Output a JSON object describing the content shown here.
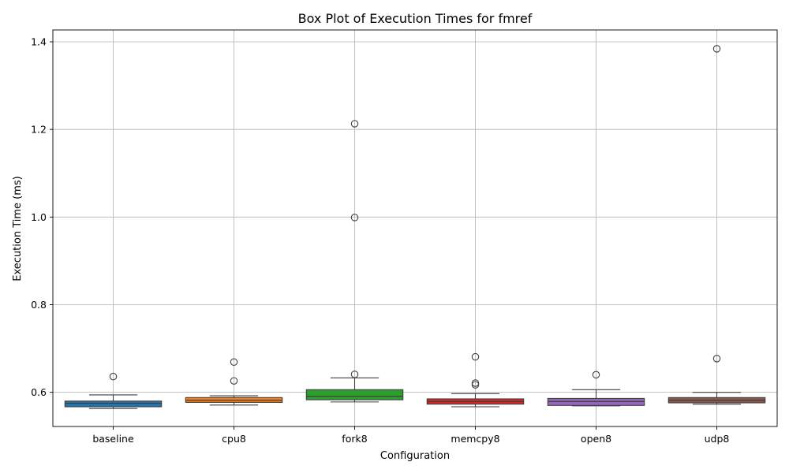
{
  "chart_data": {
    "type": "box",
    "title": "Box Plot of Execution Times for fmref",
    "xlabel": "Configuration",
    "ylabel": "Execution Time (ms)",
    "ylim": [
      0.522,
      1.427
    ],
    "yticks": [
      0.6,
      0.8,
      1.0,
      1.2,
      1.4
    ],
    "ytick_labels": [
      "0.6",
      "0.8",
      "1.0",
      "1.2",
      "1.4"
    ],
    "grid": true,
    "categories": [
      "baseline",
      "cpu8",
      "fork8",
      "memcpy8",
      "open8",
      "udp8"
    ],
    "series": [
      {
        "category": "baseline",
        "color": "#1f77b4",
        "whisker_low": 0.563,
        "q1": 0.567,
        "median": 0.575,
        "q3": 0.58,
        "whisker_high": 0.594,
        "outliers": [
          0.636
        ]
      },
      {
        "category": "cpu8",
        "color": "#ff7f0e",
        "whisker_low": 0.571,
        "q1": 0.577,
        "median": 0.582,
        "q3": 0.588,
        "whisker_high": 0.592,
        "outliers": [
          0.626,
          0.669
        ]
      },
      {
        "category": "fork8",
        "color": "#2ca02c",
        "whisker_low": 0.578,
        "q1": 0.583,
        "median": 0.591,
        "q3": 0.606,
        "whisker_high": 0.633,
        "outliers": [
          0.641,
          0.999,
          1.213
        ]
      },
      {
        "category": "memcpy8",
        "color": "#d62728",
        "whisker_low": 0.567,
        "q1": 0.573,
        "median": 0.579,
        "q3": 0.585,
        "whisker_high": 0.597,
        "outliers": [
          0.617,
          0.621,
          0.681
        ]
      },
      {
        "category": "open8",
        "color": "#9467bd",
        "whisker_low": 0.569,
        "q1": 0.57,
        "median": 0.579,
        "q3": 0.586,
        "whisker_high": 0.606,
        "outliers": [
          0.64
        ]
      },
      {
        "category": "udp8",
        "color": "#8c564b",
        "whisker_low": 0.573,
        "q1": 0.576,
        "median": 0.582,
        "q3": 0.588,
        "whisker_high": 0.6,
        "outliers": [
          0.677,
          1.384
        ]
      }
    ]
  }
}
